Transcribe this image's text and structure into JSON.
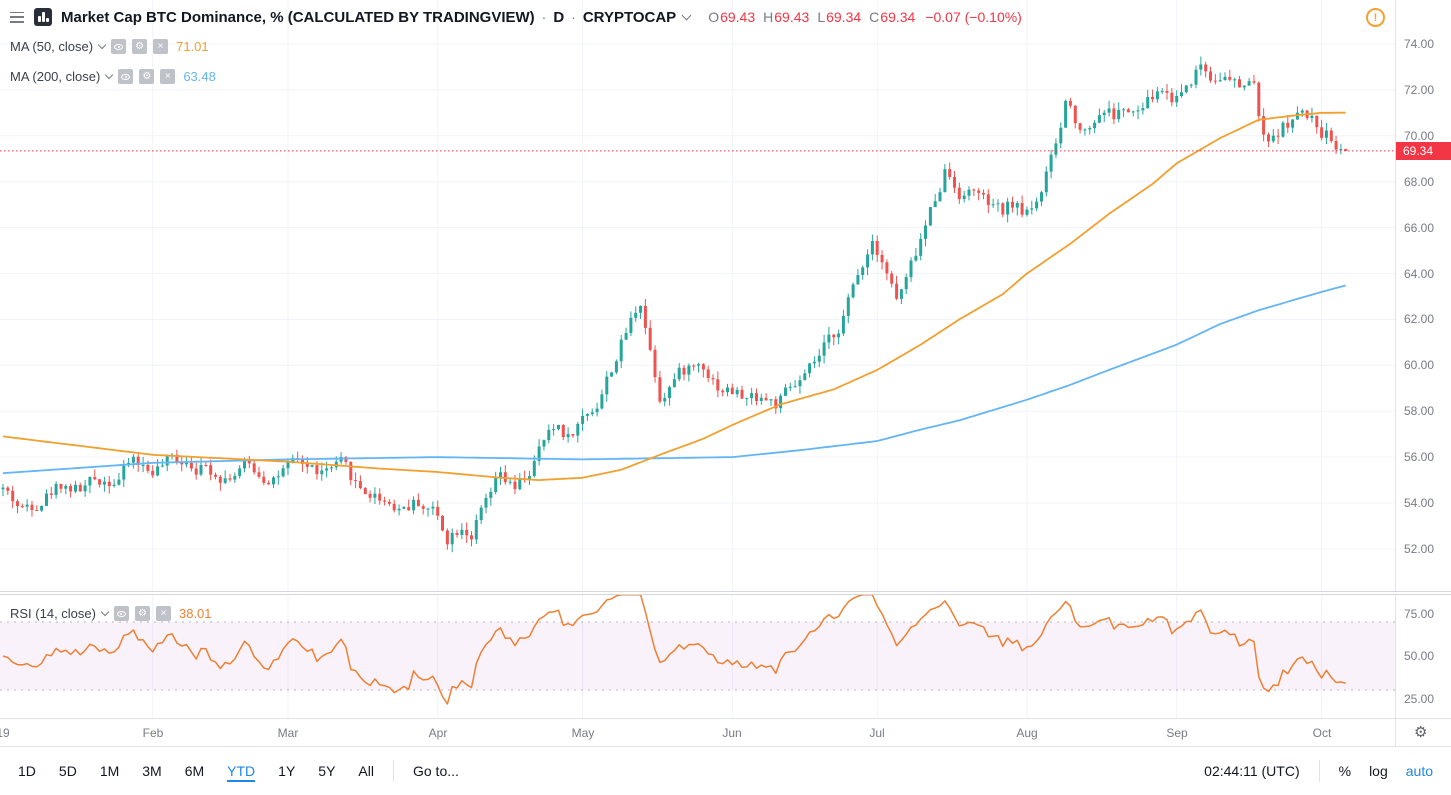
{
  "header": {
    "title": "Market Cap BTC Dominance, % (CALCULATED BY TRADINGVIEW)",
    "dot": "·",
    "interval": "D",
    "exchange": "CRYPTOCAP",
    "ohlc": {
      "o_label": "O",
      "o": "69.43",
      "h_label": "H",
      "h": "69.43",
      "l_label": "L",
      "l": "69.34",
      "c_label": "C",
      "c": "69.34",
      "change": "−0.07 (−0.10%)"
    }
  },
  "icons": {
    "settings_glyph": "⚙",
    "close_glyph": "×",
    "warning_glyph": "!",
    "gear_glyph": "⚙"
  },
  "legends": {
    "ma50": {
      "label": "MA (50, close)",
      "value": "71.01",
      "color": "#f0a02f"
    },
    "ma200": {
      "label": "MA (200, close)",
      "value": "63.48",
      "color": "#64b5f6"
    },
    "rsi": {
      "label": "RSI (14, close)",
      "value": "38.01",
      "color": "#ef7f32"
    }
  },
  "price_scale": {
    "ticks": [
      "74.00",
      "72.00",
      "70.00",
      "68.00",
      "66.00",
      "64.00",
      "62.00",
      "60.00",
      "58.00",
      "56.00",
      "54.00",
      "52.00"
    ],
    "last_price": "69.34",
    "last_price_color": "#f23645"
  },
  "rsi_scale": {
    "ticks": [
      "75.00",
      "50.00",
      "25.00"
    ]
  },
  "time_axis": {
    "labels": [
      {
        "text": "19",
        "day": 0
      },
      {
        "text": "Feb",
        "day": 31
      },
      {
        "text": "Mar",
        "day": 59
      },
      {
        "text": "Apr",
        "day": 90
      },
      {
        "text": "May",
        "day": 120
      },
      {
        "text": "Jun",
        "day": 151
      },
      {
        "text": "Jul",
        "day": 181
      },
      {
        "text": "Aug",
        "day": 212
      },
      {
        "text": "Sep",
        "day": 243
      },
      {
        "text": "Oct",
        "day": 273
      }
    ]
  },
  "toolbar": {
    "ranges": [
      "1D",
      "5D",
      "1M",
      "3M",
      "6M",
      "YTD",
      "1Y",
      "5Y",
      "All"
    ],
    "active_range": "YTD",
    "goto": "Go to...",
    "clock": "02:44:11 (UTC)",
    "scale_buttons": [
      "%",
      "log",
      "auto"
    ],
    "active_scale": "auto"
  },
  "chart_data": {
    "type": "candlestick",
    "title": "Market Cap BTC Dominance, % (CALCULATED BY TRADINGVIEW)",
    "interval": "D",
    "ylabel": "%",
    "ylim": [
      50.1,
      75.9
    ],
    "grid": true,
    "days": 278,
    "seed": 42,
    "noise": 0.7,
    "wick": 0.35,
    "current_price": 69.34,
    "last_candle": {
      "o": 69.43,
      "h": 69.43,
      "l": 69.34,
      "c": 69.34
    },
    "price_ticks": [
      74,
      72,
      70,
      68,
      66,
      64,
      62,
      60,
      58,
      56,
      54,
      52
    ],
    "close_trend_keyframes": [
      [
        0,
        54.6
      ],
      [
        4,
        53.7
      ],
      [
        8,
        54.3
      ],
      [
        12,
        54.9
      ],
      [
        16,
        54.6
      ],
      [
        20,
        55.0
      ],
      [
        24,
        55.2
      ],
      [
        27,
        55.9
      ],
      [
        30,
        55.4
      ],
      [
        34,
        55.7
      ],
      [
        38,
        56.0
      ],
      [
        42,
        55.6
      ],
      [
        46,
        55.3
      ],
      [
        50,
        55.6
      ],
      [
        54,
        55.2
      ],
      [
        58,
        55.4
      ],
      [
        62,
        55.6
      ],
      [
        66,
        55.3
      ],
      [
        70,
        55.5
      ],
      [
        74,
        54.6
      ],
      [
        78,
        54.3
      ],
      [
        82,
        53.9
      ],
      [
        86,
        54.1
      ],
      [
        89,
        53.7
      ],
      [
        92,
        52.6
      ],
      [
        95,
        53.2
      ],
      [
        97,
        52.8
      ],
      [
        100,
        53.9
      ],
      [
        103,
        55.0
      ],
      [
        106,
        54.4
      ],
      [
        109,
        55.3
      ],
      [
        112,
        56.6
      ],
      [
        115,
        57.3
      ],
      [
        117,
        56.9
      ],
      [
        120,
        57.7
      ],
      [
        123,
        58.4
      ],
      [
        126,
        59.9
      ],
      [
        129,
        61.4
      ],
      [
        131,
        62.4
      ],
      [
        132,
        62.9
      ],
      [
        134,
        60.8
      ],
      [
        136,
        58.8
      ],
      [
        139,
        59.5
      ],
      [
        142,
        59.9
      ],
      [
        145,
        60.1
      ],
      [
        148,
        59.2
      ],
      [
        151,
        58.9
      ],
      [
        154,
        58.5
      ],
      [
        157,
        58.7
      ],
      [
        160,
        58.3
      ],
      [
        163,
        58.8
      ],
      [
        166,
        59.3
      ],
      [
        169,
        60.2
      ],
      [
        172,
        61.2
      ],
      [
        174,
        62.2
      ],
      [
        176,
        63.3
      ],
      [
        178,
        64.5
      ],
      [
        180,
        65.6
      ],
      [
        182,
        64.9
      ],
      [
        184,
        63.6
      ],
      [
        185,
        62.9
      ],
      [
        187,
        63.6
      ],
      [
        189,
        64.8
      ],
      [
        191,
        66.0
      ],
      [
        193,
        67.3
      ],
      [
        195,
        68.6
      ],
      [
        197,
        68.0
      ],
      [
        199,
        67.4
      ],
      [
        201,
        67.8
      ],
      [
        203,
        67.1
      ],
      [
        205,
        66.7
      ],
      [
        207,
        66.5
      ],
      [
        209,
        67.0
      ],
      [
        211,
        66.6
      ],
      [
        213,
        67.0
      ],
      [
        215,
        67.7
      ],
      [
        217,
        68.8
      ],
      [
        219,
        70.2
      ],
      [
        220,
        71.5
      ],
      [
        222,
        70.8
      ],
      [
        224,
        70.3
      ],
      [
        226,
        70.8
      ],
      [
        228,
        71.3
      ],
      [
        230,
        70.9
      ],
      [
        232,
        71.2
      ],
      [
        234,
        70.8
      ],
      [
        236,
        71.1
      ],
      [
        238,
        71.6
      ],
      [
        240,
        72.0
      ],
      [
        242,
        71.6
      ],
      [
        244,
        72.0
      ],
      [
        246,
        72.6
      ],
      [
        248,
        73.2
      ],
      [
        250,
        72.6
      ],
      [
        252,
        72.9
      ],
      [
        254,
        72.4
      ],
      [
        256,
        72.0
      ],
      [
        258,
        72.4
      ],
      [
        259,
        72.0
      ],
      [
        261,
        69.9
      ],
      [
        262,
        69.4
      ],
      [
        264,
        70.2
      ],
      [
        266,
        70.6
      ],
      [
        268,
        70.9
      ],
      [
        270,
        70.7
      ],
      [
        272,
        70.4
      ],
      [
        274,
        70.1
      ],
      [
        276,
        69.8
      ],
      [
        278,
        69.34
      ]
    ],
    "ma50": {
      "name": "MA (50, close)",
      "color": "#f0a02f",
      "last": 71.01,
      "keyframes": [
        [
          0,
          56.9
        ],
        [
          31,
          56.1
        ],
        [
          59,
          55.8
        ],
        [
          78,
          55.5
        ],
        [
          90,
          55.35
        ],
        [
          103,
          55.1
        ],
        [
          111,
          55.0
        ],
        [
          120,
          55.1
        ],
        [
          128,
          55.45
        ],
        [
          136,
          56.1
        ],
        [
          145,
          56.8
        ],
        [
          151,
          57.4
        ],
        [
          161,
          58.3
        ],
        [
          172,
          58.95
        ],
        [
          181,
          59.8
        ],
        [
          190,
          60.9
        ],
        [
          198,
          62.0
        ],
        [
          207,
          63.1
        ],
        [
          212,
          64.0
        ],
        [
          221,
          65.3
        ],
        [
          229,
          66.6
        ],
        [
          238,
          67.9
        ],
        [
          243,
          68.8
        ],
        [
          252,
          69.9
        ],
        [
          260,
          70.7
        ],
        [
          268,
          70.9
        ],
        [
          273,
          71.0
        ],
        [
          278,
          71.01
        ]
      ]
    },
    "ma200": {
      "name": "MA (200, close)",
      "color": "#64b5f6",
      "last": 63.48,
      "keyframes": [
        [
          0,
          55.3
        ],
        [
          31,
          55.75
        ],
        [
          59,
          55.9
        ],
        [
          90,
          56.0
        ],
        [
          120,
          55.9
        ],
        [
          151,
          56.0
        ],
        [
          165,
          56.3
        ],
        [
          181,
          56.7
        ],
        [
          190,
          57.2
        ],
        [
          198,
          57.6
        ],
        [
          212,
          58.5
        ],
        [
          221,
          59.15
        ],
        [
          229,
          59.8
        ],
        [
          243,
          60.9
        ],
        [
          252,
          61.8
        ],
        [
          260,
          62.4
        ],
        [
          273,
          63.2
        ],
        [
          278,
          63.48
        ]
      ]
    },
    "rsi": {
      "name": "RSI (14, close)",
      "period": 14,
      "color": "#ef7f32",
      "last": 38.01,
      "upper_band": 70,
      "lower_band": 30,
      "scale_ticks": [
        75,
        50,
        25
      ]
    },
    "colors": {
      "up": "#26a69a",
      "down": "#ef5350",
      "price_line": "#f23645",
      "grid": "#f0f3fa",
      "band_fill": "rgba(156,39,176,0.06)",
      "band_line": "rgba(120,123,134,0.55)"
    }
  }
}
